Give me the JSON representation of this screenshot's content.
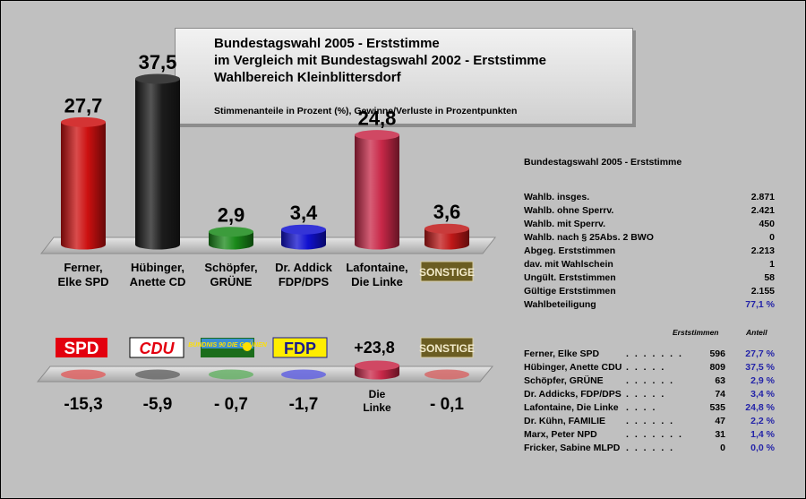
{
  "title": {
    "line1": "Bundestagswahl 2005 - Erststimme",
    "line2": "im Vergleich mit Bundestagswahl 2002 - Erststimme",
    "line3": "Wahlbereich Kleinblittersdorf",
    "subtitle": "Stimmenanteile in Prozent (%), Gewinne/Verluste in Prozentpunkten"
  },
  "chart_data": [
    {
      "type": "bar",
      "categories": [
        "Ferner, Elke SPD",
        "Hübinger, Anette CD",
        "Schöpfer, GRÜNE",
        "Dr. Addick FDP/DPS",
        "Lafontaine, Die Linke",
        "SONSTIGE"
      ],
      "category_lines": [
        [
          "Ferner,",
          "Elke SPD"
        ],
        [
          "Hübinger,",
          "Anette CD"
        ],
        [
          "Schöpfer,",
          "GRÜNE"
        ],
        [
          "Dr. Addick",
          "FDP/DPS"
        ],
        [
          "Lafontaine,",
          "Die Linke"
        ],
        [
          "SONSTIGE"
        ]
      ],
      "values": [
        27.7,
        37.5,
        2.9,
        3.4,
        24.8,
        3.6
      ],
      "value_labels": [
        "27,7",
        "37,5",
        "2,9",
        "3,4",
        "24,8",
        "3,6"
      ],
      "colors": [
        "#cc1010",
        "#1c1c1c",
        "#1a8a1a",
        "#1010d0",
        "#c82848",
        "#c01818"
      ]
    },
    {
      "type": "bar",
      "categories": [
        "SPD",
        "CDU",
        "BÜNDNIS 90 DIE GRÜNEN",
        "FDP",
        "Die Linke",
        "SONSTIGE"
      ],
      "values": [
        -15.3,
        -5.9,
        -0.7,
        -1.7,
        23.8,
        -0.1
      ],
      "value_labels": [
        "-15,3",
        "-5,9",
        "- 0,7",
        "-1,7",
        "+23,8",
        "- 0,1"
      ],
      "colors": [
        "#cc1010",
        "#1c1c1c",
        "#1a8a1a",
        "#1010d0",
        "#c82848",
        "#c01818"
      ],
      "logos": [
        "SPD",
        "CDU",
        "BÜNDNIS 90 DIE GRÜNEN",
        "FDP",
        "",
        "SONSTIGE"
      ],
      "name_lines": [
        "Die",
        "Linke"
      ]
    }
  ],
  "stats": {
    "header": "Bundestagswahl 2005 - Erststimme",
    "rows": [
      {
        "label": "Wahlb. insges.",
        "value": "2.871"
      },
      {
        "label": "Wahlb. ohne Sperrv.",
        "value": "2.421"
      },
      {
        "label": "Wahlb. mit Sperrv.",
        "value": "450"
      },
      {
        "label": "Wahlb. nach § 25Abs. 2 BWO",
        "value": "0"
      },
      {
        "label": "Abgeg. Erststimmen",
        "value": "2.213"
      },
      {
        "label": "dav. mit Wahlschein",
        "value": "1"
      },
      {
        "label": "Ungült. Erststimmen",
        "value": "58"
      },
      {
        "label": "Gültige Erststimmen",
        "value": "2.155"
      },
      {
        "label": "Wahlbeteiligung",
        "value": "77,1 %"
      }
    ],
    "col_votes": "Erststimmen",
    "col_share": "Anteil",
    "candidates": [
      {
        "name": "Ferner, Elke SPD",
        "dots": ". . . . . . .",
        "votes": "596",
        "share": "27,7 %"
      },
      {
        "name": "Hübinger, Anette CDU",
        "dots": ". . . . .",
        "votes": "809",
        "share": "37,5 %"
      },
      {
        "name": "Schöpfer,    GRÜNE",
        "dots": ". . . . . .",
        "votes": "63",
        "share": "2,9 %"
      },
      {
        "name": "Dr. Addicks,  FDP/DPS",
        "dots": ". . . . .",
        "votes": "74",
        "share": "3,4 %"
      },
      {
        "name": "Lafontaine,  Die Linke",
        "dots": ". . . .",
        "votes": "535",
        "share": "24,8 %"
      },
      {
        "name": "Dr. Kühn,  FAMILIE",
        "dots": ". . . . . .",
        "votes": "47",
        "share": "2,2 %"
      },
      {
        "name": "Marx, Peter NPD",
        "dots": ". . . . . . .",
        "votes": "31",
        "share": "1,4 %"
      },
      {
        "name": "Fricker, Sabine MLPD",
        "dots": ". . . . . .",
        "votes": "0",
        "share": "0,0 %"
      }
    ]
  }
}
